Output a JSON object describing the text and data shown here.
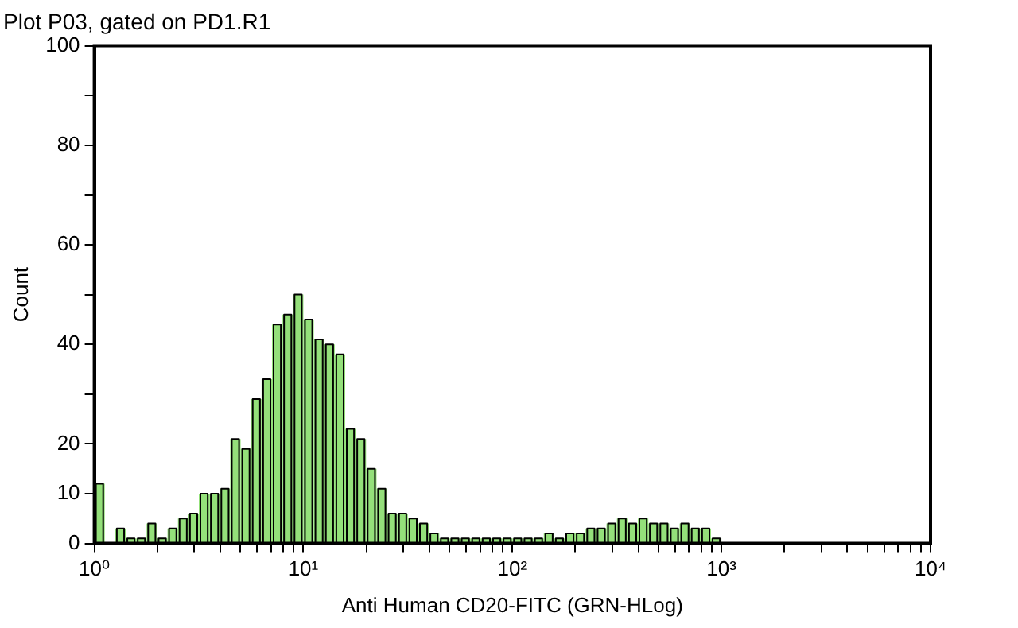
{
  "chart_data": {
    "type": "histogram",
    "title": "Plot P03, gated on PD1.R1",
    "xlabel": "Anti Human CD20-FITC (GRN-HLog)",
    "ylabel": "Count",
    "log": "x",
    "grid": false,
    "color": "#94e07a",
    "bins": [
      1,
      1.122,
      1.259,
      1.413,
      1.585,
      1.778,
      1.995,
      2.239,
      2.512,
      2.818,
      3.162,
      3.548,
      3.981,
      4.467,
      5.012,
      5.623,
      6.31,
      7.079,
      7.943,
      8.913,
      10,
      11.22,
      12.59,
      14.13,
      15.85,
      17.78,
      19.95,
      22.39,
      25.12,
      28.18,
      31.62,
      35.48,
      39.81,
      44.67,
      50.12,
      56.23,
      63.1,
      70.79,
      79.43,
      89.13,
      100,
      112.2,
      125.9,
      141.3,
      158.5,
      177.8,
      199.5,
      223.9,
      251.2,
      281.8,
      316.2,
      354.8,
      398.1,
      446.7,
      501.2,
      562.3,
      631,
      707.9,
      794.3,
      891.3,
      1000
    ],
    "values": [
      12,
      0,
      3,
      1,
      1,
      4,
      1,
      3,
      5,
      6,
      10,
      10,
      11,
      21,
      19,
      29,
      33,
      44,
      46,
      50,
      45,
      41,
      40,
      38,
      23,
      21,
      15,
      11,
      6,
      6,
      5,
      4,
      2,
      1,
      1,
      1,
      1,
      1,
      1,
      1,
      1,
      1,
      1,
      2,
      1,
      2,
      2,
      3,
      3,
      4,
      5,
      4,
      5,
      4,
      4,
      3,
      4,
      3,
      3,
      1
    ],
    "xlim": [
      1,
      10000
    ],
    "xticks": [
      {
        "value": 1,
        "label": "10⁰"
      },
      {
        "value": 2,
        "label": null
      },
      {
        "value": 3,
        "label": null
      },
      {
        "value": 4,
        "label": null
      },
      {
        "value": 5,
        "label": null
      },
      {
        "value": 6,
        "label": null
      },
      {
        "value": 7,
        "label": null
      },
      {
        "value": 8,
        "label": null
      },
      {
        "value": 9,
        "label": null
      },
      {
        "value": 10,
        "label": "10¹"
      },
      {
        "value": 20,
        "label": null
      },
      {
        "value": 30,
        "label": null
      },
      {
        "value": 40,
        "label": null
      },
      {
        "value": 50,
        "label": null
      },
      {
        "value": 60,
        "label": null
      },
      {
        "value": 70,
        "label": null
      },
      {
        "value": 80,
        "label": null
      },
      {
        "value": 90,
        "label": null
      },
      {
        "value": 100,
        "label": "10²"
      },
      {
        "value": 200,
        "label": null
      },
      {
        "value": 300,
        "label": null
      },
      {
        "value": 400,
        "label": null
      },
      {
        "value": 500,
        "label": null
      },
      {
        "value": 600,
        "label": null
      },
      {
        "value": 700,
        "label": null
      },
      {
        "value": 800,
        "label": null
      },
      {
        "value": 900,
        "label": null
      },
      {
        "value": 1000,
        "label": "10³"
      },
      {
        "value": 2000,
        "label": null
      },
      {
        "value": 3000,
        "label": null
      },
      {
        "value": 4000,
        "label": null
      },
      {
        "value": 5000,
        "label": null
      },
      {
        "value": 6000,
        "label": null
      },
      {
        "value": 7000,
        "label": null
      },
      {
        "value": 8000,
        "label": null
      },
      {
        "value": 9000,
        "label": null
      },
      {
        "value": 10000,
        "label": "10⁴"
      }
    ],
    "ylim": [
      0,
      100
    ],
    "yticks": [
      0,
      10,
      20,
      {
        "value": 30,
        "label": null
      },
      40,
      {
        "value": 50,
        "label": null
      },
      60,
      {
        "value": 70,
        "label": null
      },
      80,
      {
        "value": 90,
        "label": null
      },
      100
    ]
  }
}
